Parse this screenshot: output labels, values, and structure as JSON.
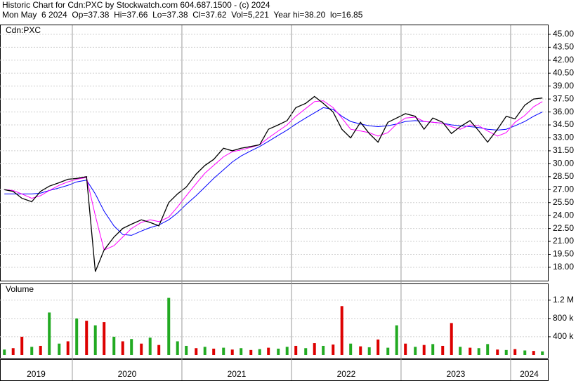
{
  "chart_data": [
    {
      "type": "line",
      "title": "Historic Chart for Cdn:PXC by Stockwatch.com 604.687.1500 - (c) 2024",
      "subtitle": "Mon May  6 2024  Op=37.38  Hi=37.66  Lo=37.38  Cl=37.62  Vol=5,221  Year hi=38.20  lo=16.85",
      "label": "Cdn:PXC",
      "x": [
        2019.38,
        2019.46,
        2019.54,
        2019.63,
        2019.71,
        2019.79,
        2019.88,
        2019.96,
        2020.04,
        2020.13,
        2020.21,
        2020.29,
        2020.38,
        2020.46,
        2020.54,
        2020.63,
        2020.71,
        2020.79,
        2020.88,
        2020.96,
        2021.04,
        2021.13,
        2021.21,
        2021.29,
        2021.38,
        2021.46,
        2021.54,
        2021.63,
        2021.71,
        2021.79,
        2021.88,
        2021.96,
        2022.04,
        2022.13,
        2022.21,
        2022.29,
        2022.38,
        2022.46,
        2022.54,
        2022.63,
        2022.71,
        2022.79,
        2022.88,
        2022.96,
        2023.04,
        2023.13,
        2023.21,
        2023.29,
        2023.38,
        2023.46,
        2023.54,
        2023.63,
        2023.71,
        2023.79,
        2023.88,
        2023.96,
        2024.04,
        2024.13,
        2024.21,
        2024.29
      ],
      "xlim": [
        2019.34,
        2024.34
      ],
      "ylim": [
        16.45,
        46.05
      ],
      "yticks": [
        {
          "value": 18,
          "label": "18.00"
        },
        {
          "value": 19.5,
          "label": "19.50"
        },
        {
          "value": 21,
          "label": "21.00"
        },
        {
          "value": 22.5,
          "label": "22.50"
        },
        {
          "value": 24,
          "label": "24.00"
        },
        {
          "value": 25.5,
          "label": "25.50"
        },
        {
          "value": 27,
          "label": "27.00"
        },
        {
          "value": 28.5,
          "label": "28.50"
        },
        {
          "value": 30,
          "label": "30.00"
        },
        {
          "value": 31.5,
          "label": "31.50"
        },
        {
          "value": 33,
          "label": "33.00"
        },
        {
          "value": 34.5,
          "label": "34.50"
        },
        {
          "value": 36,
          "label": "36.00"
        },
        {
          "value": 37.5,
          "label": "37.50"
        },
        {
          "value": 39,
          "label": "39.00"
        },
        {
          "value": 40.5,
          "label": "40.50"
        },
        {
          "value": 42,
          "label": "42.00"
        },
        {
          "value": 43.5,
          "label": "43.50"
        },
        {
          "value": 45,
          "label": "45.00"
        }
      ],
      "grid": true,
      "series": [
        {
          "color": "#0000ff",
          "values": [
            26.5,
            26.5,
            26.5,
            26.5,
            26.6,
            26.9,
            27.2,
            27.5,
            27.9,
            28.1,
            26.5,
            24.5,
            22.8,
            21.8,
            21.7,
            22.2,
            22.6,
            22.9,
            23.5,
            24.3,
            25.3,
            26.3,
            27.3,
            28.3,
            29.3,
            30.2,
            30.9,
            31.5,
            32.0,
            32.6,
            33.3,
            33.9,
            34.6,
            35.3,
            35.9,
            36.5,
            36.3,
            35.5,
            34.9,
            34.6,
            34.4,
            34.3,
            34.4,
            34.6,
            34.9,
            35.0,
            34.9,
            34.8,
            34.7,
            34.5,
            34.4,
            34.3,
            34.2,
            34.0,
            33.9,
            34.0,
            34.4,
            34.9,
            35.5,
            36.0
          ]
        },
        {
          "color": "#ff00ff",
          "values": [
            27.0,
            26.9,
            26.5,
            26.0,
            26.3,
            26.9,
            27.5,
            27.9,
            28.2,
            28.4,
            24.0,
            20.0,
            20.5,
            21.5,
            22.5,
            23.2,
            23.5,
            23.3,
            23.8,
            25.0,
            26.3,
            27.7,
            28.9,
            29.8,
            30.8,
            31.4,
            31.6,
            31.9,
            32.2,
            33.0,
            33.8,
            34.5,
            35.5,
            36.4,
            37.2,
            37.3,
            36.5,
            35.3,
            34.0,
            33.8,
            33.6,
            33.2,
            33.6,
            34.6,
            35.3,
            35.4,
            34.9,
            34.8,
            34.7,
            34.3,
            34.0,
            34.5,
            34.4,
            33.8,
            33.2,
            33.6,
            34.8,
            35.6,
            36.6,
            37.2
          ]
        },
        {
          "color": "#000000",
          "values": [
            27.0,
            26.8,
            26.0,
            25.6,
            26.8,
            27.4,
            27.8,
            28.2,
            28.3,
            28.5,
            17.5,
            20.0,
            21.5,
            22.5,
            23.0,
            23.5,
            23.2,
            22.8,
            25.5,
            26.5,
            27.3,
            28.8,
            29.8,
            30.5,
            31.8,
            31.5,
            31.8,
            32.0,
            32.2,
            34.0,
            34.5,
            35.0,
            36.5,
            37.0,
            37.8,
            37.0,
            36.0,
            34.0,
            33.0,
            34.8,
            33.5,
            32.5,
            34.8,
            35.3,
            35.8,
            35.5,
            34.0,
            35.3,
            34.8,
            33.5,
            34.3,
            35.0,
            33.8,
            32.5,
            34.0,
            35.5,
            35.2,
            36.8,
            37.5,
            37.62
          ]
        }
      ]
    },
    {
      "type": "bar",
      "label": "Volume",
      "x": [
        2019.38,
        2019.46,
        2019.54,
        2019.63,
        2019.71,
        2019.79,
        2019.88,
        2019.96,
        2020.04,
        2020.13,
        2020.21,
        2020.29,
        2020.38,
        2020.46,
        2020.54,
        2020.63,
        2020.71,
        2020.79,
        2020.88,
        2020.96,
        2021.04,
        2021.13,
        2021.21,
        2021.29,
        2021.38,
        2021.46,
        2021.54,
        2021.63,
        2021.71,
        2021.79,
        2021.88,
        2021.96,
        2022.04,
        2022.13,
        2022.21,
        2022.29,
        2022.38,
        2022.46,
        2022.54,
        2022.63,
        2022.71,
        2022.79,
        2022.88,
        2022.96,
        2023.04,
        2023.13,
        2023.21,
        2023.29,
        2023.38,
        2023.46,
        2023.54,
        2023.63,
        2023.71,
        2023.79,
        2023.88,
        2023.96,
        2024.04,
        2024.13,
        2024.21,
        2024.29
      ],
      "xlim": [
        2019.34,
        2024.34
      ],
      "xticks": [
        2019,
        2020,
        2021,
        2022,
        2023,
        2024
      ],
      "ylim": [
        0,
        1550000
      ],
      "yticks": [
        {
          "value": 400000,
          "label": "400 k"
        },
        {
          "value": 800000,
          "label": "800 k"
        },
        {
          "value": 1200000,
          "label": "1.2 M"
        }
      ],
      "values": [
        120000,
        150000,
        400000,
        180000,
        200000,
        930000,
        250000,
        300000,
        800000,
        750000,
        650000,
        720000,
        400000,
        300000,
        350000,
        250000,
        380000,
        220000,
        1250000,
        300000,
        200000,
        150000,
        180000,
        140000,
        160000,
        120000,
        150000,
        110000,
        130000,
        160000,
        140000,
        180000,
        200000,
        150000,
        260000,
        200000,
        230000,
        1070000,
        250000,
        190000,
        170000,
        340000,
        160000,
        650000,
        250000,
        180000,
        220000,
        240000,
        200000,
        700000,
        180000,
        160000,
        150000,
        240000,
        120000,
        110000,
        130000,
        100000,
        90000,
        80000
      ],
      "colors": [
        "#22aa22",
        "#dd0000",
        "#dd0000",
        "#22aa22",
        "#dd0000",
        "#22aa22",
        "#22aa22",
        "#dd0000",
        "#22aa22",
        "#dd0000",
        "#22aa22",
        "#dd0000",
        "#22aa22",
        "#dd0000",
        "#22aa22",
        "#dd0000",
        "#22aa22",
        "#dd0000",
        "#22aa22",
        "#22aa22",
        "#22aa22",
        "#dd0000",
        "#22aa22",
        "#dd0000",
        "#22aa22",
        "#dd0000",
        "#22aa22",
        "#dd0000",
        "#22aa22",
        "#dd0000",
        "#22aa22",
        "#22aa22",
        "#dd0000",
        "#22aa22",
        "#dd0000",
        "#22aa22",
        "#dd0000",
        "#dd0000",
        "#22aa22",
        "#dd0000",
        "#22aa22",
        "#dd0000",
        "#22aa22",
        "#22aa22",
        "#dd0000",
        "#22aa22",
        "#dd0000",
        "#22aa22",
        "#dd0000",
        "#dd0000",
        "#22aa22",
        "#dd0000",
        "#22aa22",
        "#22aa22",
        "#dd0000",
        "#22aa22",
        "#dd0000",
        "#22aa22",
        "#dd0000",
        "#22aa22"
      ]
    }
  ]
}
